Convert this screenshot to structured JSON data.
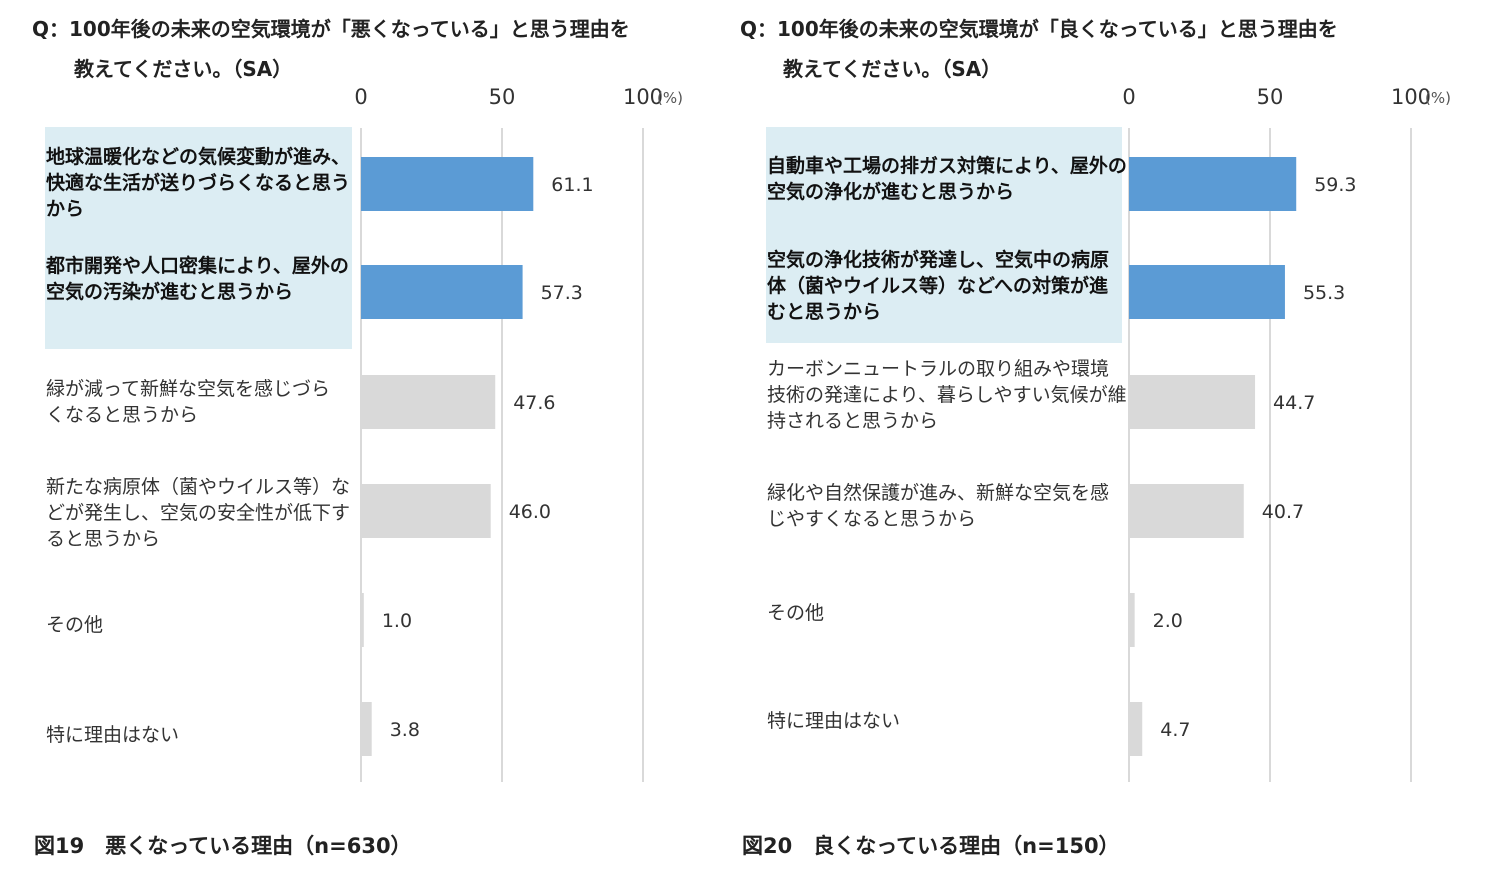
{
  "chart_data": [
    {
      "type": "bar",
      "orientation": "horizontal",
      "question_line1": "Q：100年後の未来の空気環境が「悪くなっている」と思う理由を",
      "question_line2": "教えてください。（SA）",
      "caption": "図19　悪くなっている理由（n=630）",
      "unit": "(%)",
      "xlim": [
        0,
        100
      ],
      "xticks": [
        "0",
        "50",
        "100"
      ],
      "grid": true,
      "categories": [
        "地球温暖化などの気候変動が進み、快適な生活が送りづらくなると思うから",
        "都市開発や人口密集により、屋外の空気の汚染が進むと思うから",
        "緑が減って新鮮な空気を感じづらくなると思うから",
        "新たな病原体（菌やウイルス等）などが発生し、空気の安全性が低下すると思うから",
        "その他",
        "特に理由はない"
      ],
      "values": [
        61.1,
        57.3,
        47.6,
        46.0,
        1.0,
        3.8
      ],
      "value_labels": [
        "61.1",
        "57.3",
        "47.6",
        "46.0",
        "1.0",
        "3.8"
      ],
      "highlighted": [
        true,
        true,
        false,
        false,
        false,
        false
      ],
      "colors": {
        "highlight_bar": "#5b9bd5",
        "normal_bar": "#d9d9d9",
        "highlight_bg": "#dcedf3"
      }
    },
    {
      "type": "bar",
      "orientation": "horizontal",
      "question_line1": "Q：100年後の未来の空気環境が「良くなっている」と思う理由を",
      "question_line2": "教えてください。（SA）",
      "caption": "図20　良くなっている理由（n=150）",
      "unit": "(%)",
      "xlim": [
        0,
        100
      ],
      "xticks": [
        "0",
        "50",
        "100"
      ],
      "grid": true,
      "categories": [
        "自動車や工場の排ガス対策により、屋外の空気の浄化が進むと思うから",
        "空気の浄化技術が発達し、空気中の病原体（菌やウイルス等）などへの対策が進むと思うから",
        "カーボンニュートラルの取り組みや環境技術の発達により、暮らしやすい気候が維持されると思うから",
        "緑化や自然保護が進み、新鮮な空気を感じやすくなると思うから",
        "その他",
        "特に理由はない"
      ],
      "values": [
        59.3,
        55.3,
        44.7,
        40.7,
        2.0,
        4.7
      ],
      "value_labels": [
        "59.3",
        "55.3",
        "44.7",
        "40.7",
        "2.0",
        "4.7"
      ],
      "highlighted": [
        true,
        true,
        false,
        false,
        false,
        false
      ],
      "colors": {
        "highlight_bar": "#5b9bd5",
        "normal_bar": "#d9d9d9",
        "highlight_bg": "#dcedf3"
      }
    }
  ]
}
